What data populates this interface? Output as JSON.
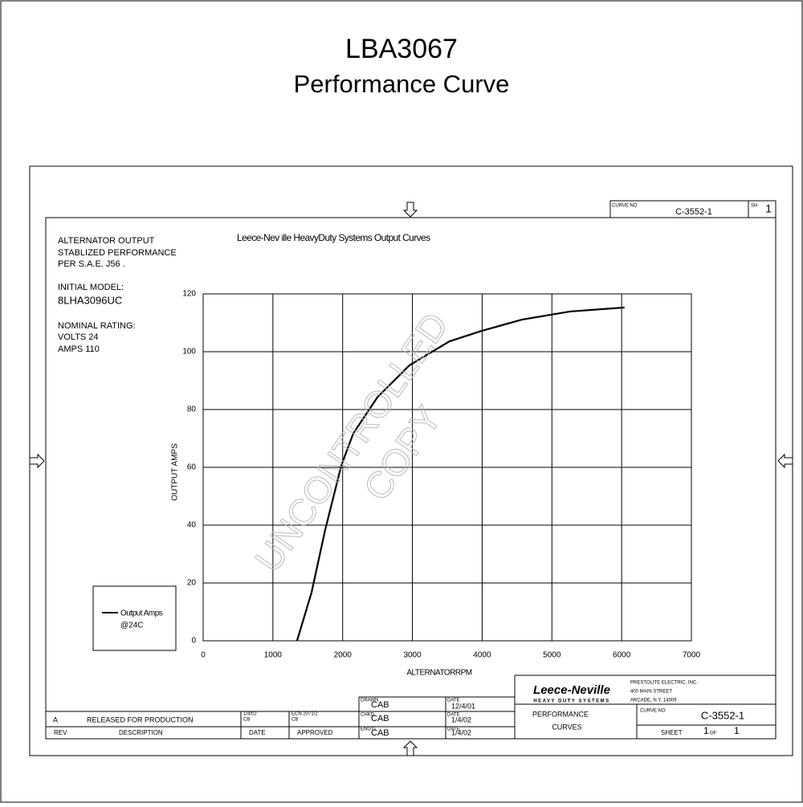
{
  "header": {
    "title": "LBA3067",
    "subtitle": "Performance Curve"
  },
  "notes": {
    "line1": "ALTERNATOR OUTPUT",
    "line2": "STABLIZED PERFORMANCE",
    "line3": "PER S.A.E. J56 .",
    "model_label": "INITIAL MODEL:",
    "model": "8LHA3096UC",
    "rating_label": "NOMINAL RATING:",
    "volts": "VOLTS 24",
    "amps": "AMPS 110"
  },
  "watermark": {
    "line1": "UNCONTROLLED",
    "line2": "COPY"
  },
  "chart_data": {
    "type": "line",
    "title": "Leece-Nev   ille HeavyDuty Systems Output Curves",
    "x_label": "ALTERNATORRPM",
    "y_label": "OUTPUT AMPS",
    "x": [
      1346,
      1554,
      1749,
      1980,
      2152,
      2497,
      2958,
      3533,
      3993,
      4569,
      5259,
      6041
    ],
    "series": [
      {
        "name": "Output Amps",
        "color": "#000000",
        "values": [
          0,
          16.7,
          38.3,
          60.6,
          71.7,
          84.2,
          95.3,
          103.6,
          107.2,
          111.1,
          113.9,
          115.3
        ]
      }
    ],
    "legend_note": "@24C",
    "xlim": [
      0,
      7000
    ],
    "xticks": [
      0,
      1000,
      2000,
      3000,
      4000,
      5000,
      6000,
      7000
    ],
    "ylim": [
      0,
      120
    ],
    "yticks": [
      0,
      20,
      40,
      60,
      80,
      100,
      120
    ],
    "grid": true
  },
  "title_block": {
    "curve_no_label": "CURVE NO",
    "curve_no": "C-3552-1",
    "sh_label": "SH",
    "sh": "1",
    "drawn_label": "DRAWN",
    "drawn": "CAB",
    "drawn_date_label": "DATE",
    "drawn_date": "12/4/01",
    "chkd_label": "CHKD",
    "chkd": "CAB",
    "chkd_date_label": "DATE",
    "chkd_date": "1/4/02",
    "engd_label": "ENG'G",
    "engd": "CAB",
    "engd_date_label": "DATE",
    "engd_date": "1/4/02",
    "rev": "A",
    "rev_desc": "RELEASED FOR PRODUCTION",
    "rev_date": "1/4/02",
    "rev_date_by": "CB",
    "rev_appr": "ECN 2071/2",
    "rev_appr_by": "CB",
    "col_rev": "REV",
    "col_desc": "DESCRIPTION",
    "col_date": "DATE",
    "col_appr": "APPROVED",
    "brand": "Leece-Neville",
    "brand_sub": "HEAVY DUTY SYSTEMS",
    "company": "PRESTOLITE ELECTRIC, INC.",
    "street": "400 MAIN STREET",
    "city": "ARCADE, N.Y. 14009",
    "doc1": "PERFORMANCE",
    "doc2": "CURVES",
    "curve_no_label2": "CURVE NO",
    "curve_no2": "C-3552-1",
    "sheet_label": "SHEET",
    "sheet": "1",
    "of_label": "OF",
    "sheets": "1"
  }
}
